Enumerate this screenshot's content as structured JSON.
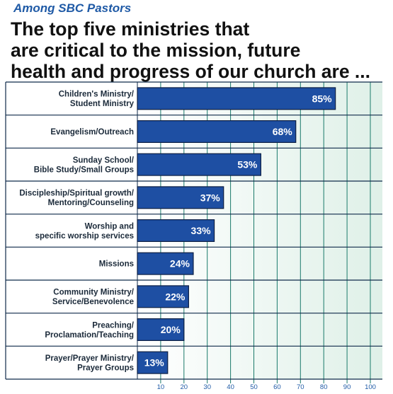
{
  "header": {
    "subtitle": "Among SBC Pastors",
    "title_lines": [
      "The top five ministries that",
      "are critical to the mission, future",
      "health and progress of our church are ..."
    ]
  },
  "colors": {
    "bar": "#1e4fa3",
    "bar_edge": "#0d1f44",
    "grid": "#1b7a6b",
    "panel_left": "#ffffff",
    "panel_right": "#dff0e8",
    "label_column": "#ffffff",
    "row_divider": "#0f2a4a",
    "accent": "#1f5aa6"
  },
  "chart_data": {
    "type": "bar",
    "orientation": "horizontal",
    "categories": [
      [
        "Children's Ministry/",
        "Student Ministry"
      ],
      [
        "Evangelism/Outreach"
      ],
      [
        "Sunday School/",
        "Bible Study/Small Groups"
      ],
      [
        "Discipleship/Spiritual growth/",
        "Mentoring/Counseling"
      ],
      [
        "Worship and",
        "specific worship services"
      ],
      [
        "Missions"
      ],
      [
        "Community Ministry/",
        "Service/Benevolence"
      ],
      [
        "Preaching/",
        "Proclamation/Teaching"
      ],
      [
        "Prayer/Prayer Ministry/",
        "Prayer Groups"
      ]
    ],
    "values": [
      85,
      68,
      53,
      37,
      33,
      24,
      22,
      20,
      13
    ],
    "value_labels": [
      "85%",
      "68%",
      "53%",
      "37%",
      "33%",
      "24%",
      "22%",
      "20%",
      "13%"
    ],
    "xlim": [
      0,
      100
    ],
    "ticks": [
      10,
      20,
      30,
      40,
      50,
      60,
      70,
      80,
      90,
      100
    ],
    "tick_labels": [
      "10",
      "20",
      "30",
      "40",
      "50",
      "60",
      "70",
      "80",
      "90",
      "100"
    ],
    "grid": true
  }
}
